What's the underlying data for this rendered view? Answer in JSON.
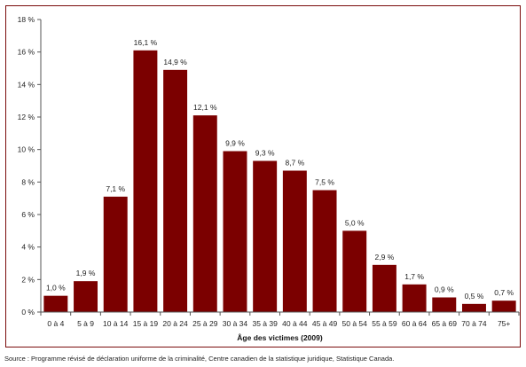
{
  "chart_data": {
    "type": "bar",
    "title": "",
    "xlabel": "Âge des victimes (2009)",
    "ylabel": "",
    "ylim": [
      0,
      18
    ],
    "ytick_values": [
      0,
      2,
      4,
      6,
      8,
      10,
      12,
      14,
      16,
      18
    ],
    "ytick_labels": [
      "0 %",
      "2 %",
      "4 %",
      "6 %",
      "8 %",
      "10 %",
      "12 %",
      "14 %",
      "16 %",
      "18 %"
    ],
    "categories": [
      "0 à 4",
      "5 à 9",
      "10 à 14",
      "15 à 19",
      "20 à 24",
      "25 à 29",
      "30 à 34",
      "35 à 39",
      "40 à 44",
      "45 à 49",
      "50 à 54",
      "55 à 59",
      "60 à 64",
      "65 à 69",
      "70 à 74",
      "75+"
    ],
    "values": [
      1.0,
      1.9,
      7.1,
      16.1,
      14.9,
      12.1,
      9.9,
      9.3,
      8.7,
      7.5,
      5.0,
      2.9,
      1.7,
      0.9,
      0.5,
      0.7
    ],
    "data_labels": [
      "1,0 %",
      "1,9 %",
      "7,1 %",
      "16,1 %",
      "14,9 %",
      "12,1 %",
      "9,9 %",
      "9,3 %",
      "8,7 %",
      "7,5 %",
      "5,0 %",
      "2,9 %",
      "1,7 %",
      "0,9 %",
      "0,5 %",
      "0,7 %"
    ],
    "grid": false,
    "legend": "none",
    "bar_color": "#7b0000",
    "frame_color": "#7a0b0b"
  },
  "source": "Source : Programme révisé de déclaration uniforme de la criminalité, Centre canadien de la statistique juridique, Statistique Canada."
}
